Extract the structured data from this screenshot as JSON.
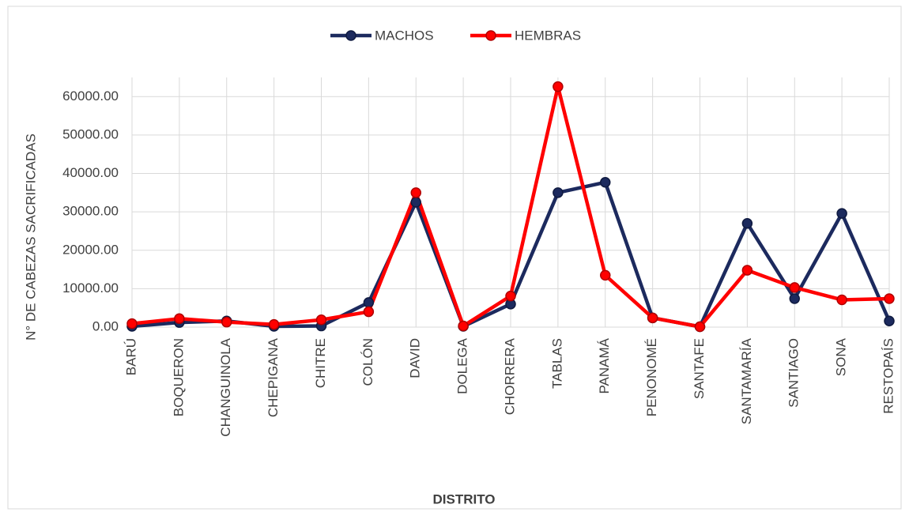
{
  "chart_data": {
    "type": "line",
    "x_label": "DISTRITO",
    "y_label": "N° DE CABEZAS SACRIFICADAS",
    "categories": [
      "BARÚ",
      "BOQUERON",
      "CHANGUINOLA",
      "CHEPIGANA",
      "CHITRE",
      "COLÓN",
      "DAVID",
      "DOLEGA",
      "CHORRERA",
      "TABLAS",
      "PANAMÁ",
      "PENONOMÉ",
      "SANTAFE",
      "SANTAMARÍA",
      "SANTIAGO",
      "SONA",
      "RESTOPAÍS"
    ],
    "series": [
      {
        "name": "MACHOS",
        "color": "#1c2a5e",
        "values": [
          200,
          1200,
          1600,
          200,
          300,
          6400,
          32500,
          200,
          6000,
          35000,
          37700,
          2400,
          100,
          27000,
          7400,
          29600,
          1600
        ]
      },
      {
        "name": "HEMBRAS",
        "color": "#ff0000",
        "values": [
          900,
          2200,
          1300,
          700,
          1900,
          4000,
          35000,
          300,
          8100,
          62600,
          13500,
          2400,
          100,
          14800,
          10300,
          7100,
          7400
        ]
      }
    ],
    "ylim": [
      0,
      65000
    ],
    "yticks": [
      {
        "value": 0,
        "label": "0.00"
      },
      {
        "value": 10000,
        "label": "10000.00"
      },
      {
        "value": 20000,
        "label": "20000.00"
      },
      {
        "value": 30000,
        "label": "30000.00"
      },
      {
        "value": 40000,
        "label": "40000.00"
      },
      {
        "value": 50000,
        "label": "50000.00"
      },
      {
        "value": 60000,
        "label": "60000.00"
      }
    ],
    "grid": true,
    "legend": "top"
  }
}
